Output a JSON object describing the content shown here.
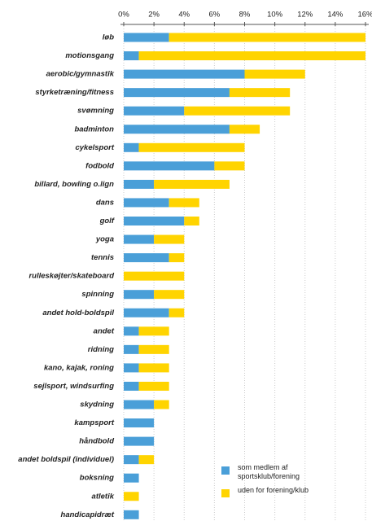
{
  "chart_data": {
    "type": "stacked-hbar",
    "categories": [
      "løb",
      "motionsgang",
      "aerobic/gymnastik",
      "styrketræning/fitness",
      "svømning",
      "badminton",
      "cykelsport",
      "fodbold",
      "billard, bowling o.lign",
      "dans",
      "golf",
      "yoga",
      "tennis",
      "rulleskøjter/skateboard",
      "spinning",
      "andet hold-boldspil",
      "andet",
      "ridning",
      "kano, kajak, roning",
      "sejlsport, windsurfing",
      "skydning",
      "kampsport",
      "håndbold",
      "andet boldspil (individuel)",
      "boksning",
      "atletik",
      "handicapidræt"
    ],
    "series": [
      {
        "name": "som medlem af sportsklub/forening",
        "color": "#4a9fd8",
        "values": [
          3,
          1,
          8,
          7,
          4,
          7,
          1,
          6,
          2,
          3,
          4,
          2,
          3,
          0,
          2,
          3,
          1,
          1,
          1,
          1,
          2,
          2,
          2,
          1,
          1,
          0,
          1
        ]
      },
      {
        "name": "uden for forening/klub",
        "color": "#ffd400",
        "values": [
          13,
          15,
          4,
          4,
          7,
          2,
          7,
          2,
          5,
          2,
          1,
          2,
          1,
          4,
          2,
          1,
          2,
          2,
          2,
          2,
          1,
          0,
          0,
          1,
          0,
          1,
          0
        ]
      }
    ],
    "xlim": [
      0,
      16
    ],
    "xticks": [
      {
        "value": 0,
        "label": "0%"
      },
      {
        "value": 2,
        "label": "2%"
      },
      {
        "value": 4,
        "label": "4%"
      },
      {
        "value": 6,
        "label": "6%"
      },
      {
        "value": 8,
        "label": "8%"
      },
      {
        "value": 10,
        "label": "10%"
      },
      {
        "value": 12,
        "label": "12%"
      },
      {
        "value": 14,
        "label": "14%"
      },
      {
        "value": 16,
        "label": "16%"
      }
    ],
    "grid": true
  }
}
